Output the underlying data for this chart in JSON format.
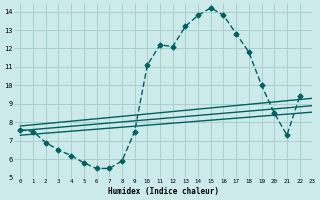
{
  "background_color": "#cceaea",
  "grid_color": "#aacece",
  "line_color": "#006060",
  "line_width": 1.0,
  "marker": "D",
  "marker_size": 2.5,
  "curve_x": [
    0,
    1,
    2,
    3,
    4,
    5,
    6,
    7,
    8,
    9,
    10,
    11,
    12,
    13,
    14,
    15,
    16,
    17,
    18,
    19,
    20,
    21,
    22
  ],
  "curve_y": [
    7.6,
    7.5,
    6.9,
    6.5,
    6.2,
    5.8,
    5.5,
    5.5,
    5.9,
    7.5,
    11.1,
    12.2,
    12.1,
    13.2,
    13.8,
    14.2,
    13.8,
    12.8,
    11.8,
    10.0,
    8.5,
    7.3,
    9.4
  ],
  "line1_x": [
    0,
    23
  ],
  "line1_y": [
    7.8,
    9.3
  ],
  "line2_x": [
    0,
    23
  ],
  "line2_y": [
    7.55,
    8.9
  ],
  "line3_x": [
    0,
    23
  ],
  "line3_y": [
    7.3,
    8.55
  ],
  "xlabel": "Humidex (Indice chaleur)",
  "xlim": [
    -0.5,
    23
  ],
  "ylim": [
    5,
    14.4
  ],
  "yticks": [
    5,
    6,
    7,
    8,
    9,
    10,
    11,
    12,
    13,
    14
  ],
  "xticks": [
    0,
    1,
    2,
    3,
    4,
    5,
    6,
    7,
    8,
    9,
    10,
    11,
    12,
    13,
    14,
    15,
    16,
    17,
    18,
    19,
    20,
    21,
    22,
    23
  ]
}
